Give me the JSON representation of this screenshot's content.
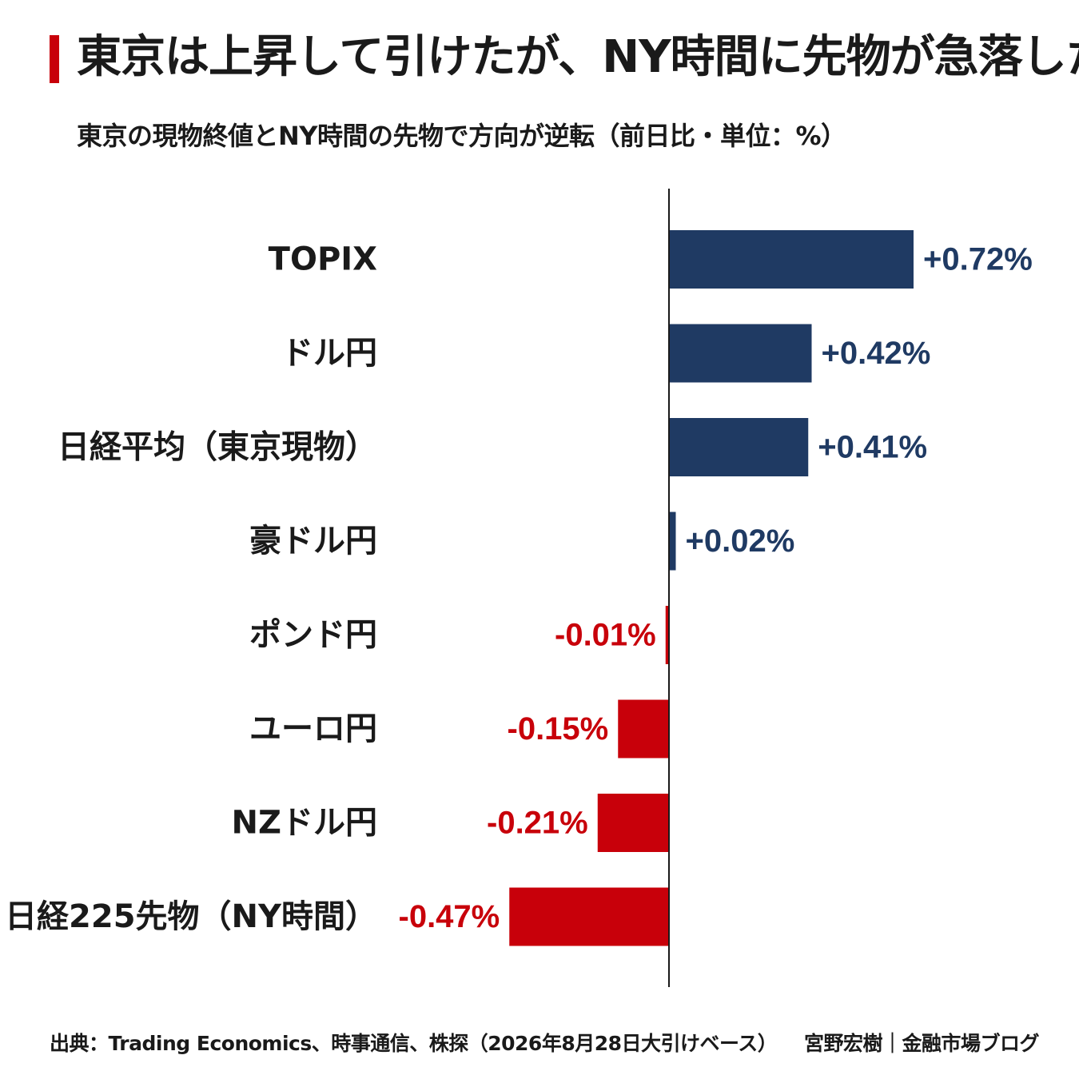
{
  "title": "東京は上昇して引けたが、NY時間に先物が急落した",
  "subtitle": "東京の現物終値とNY時間の先物で方向が逆転（前日比・単位：%）",
  "source": "出典：Trading Economics、時事通信、株探（2026年8月28日大引けベース）",
  "credit": "宮野宏樹｜金融市場ブログ",
  "colors": {
    "positive": "#1f3a63",
    "negative": "#c8000a",
    "title_accent": "#c8000a",
    "axis": "#1a1a1a"
  },
  "chart_data": {
    "type": "bar",
    "orientation": "horizontal",
    "categories": [
      "TOPIX",
      "ドル円",
      "日経平均（東京現物）",
      "豪ドル円",
      "ポンド円",
      "ユーロ円",
      "NZドル円",
      "日経225先物（NY時間）"
    ],
    "values": [
      0.72,
      0.42,
      0.41,
      0.02,
      -0.01,
      -0.15,
      -0.21,
      -0.47
    ],
    "data_labels": [
      "+0.72%",
      "+0.42%",
      "+0.41%",
      "+0.02%",
      "-0.01%",
      "-0.15%",
      "-0.21%",
      "-0.47%"
    ],
    "unit": "%",
    "xlim": [
      -0.47,
      0.72
    ],
    "grid": false,
    "legend": "none"
  }
}
